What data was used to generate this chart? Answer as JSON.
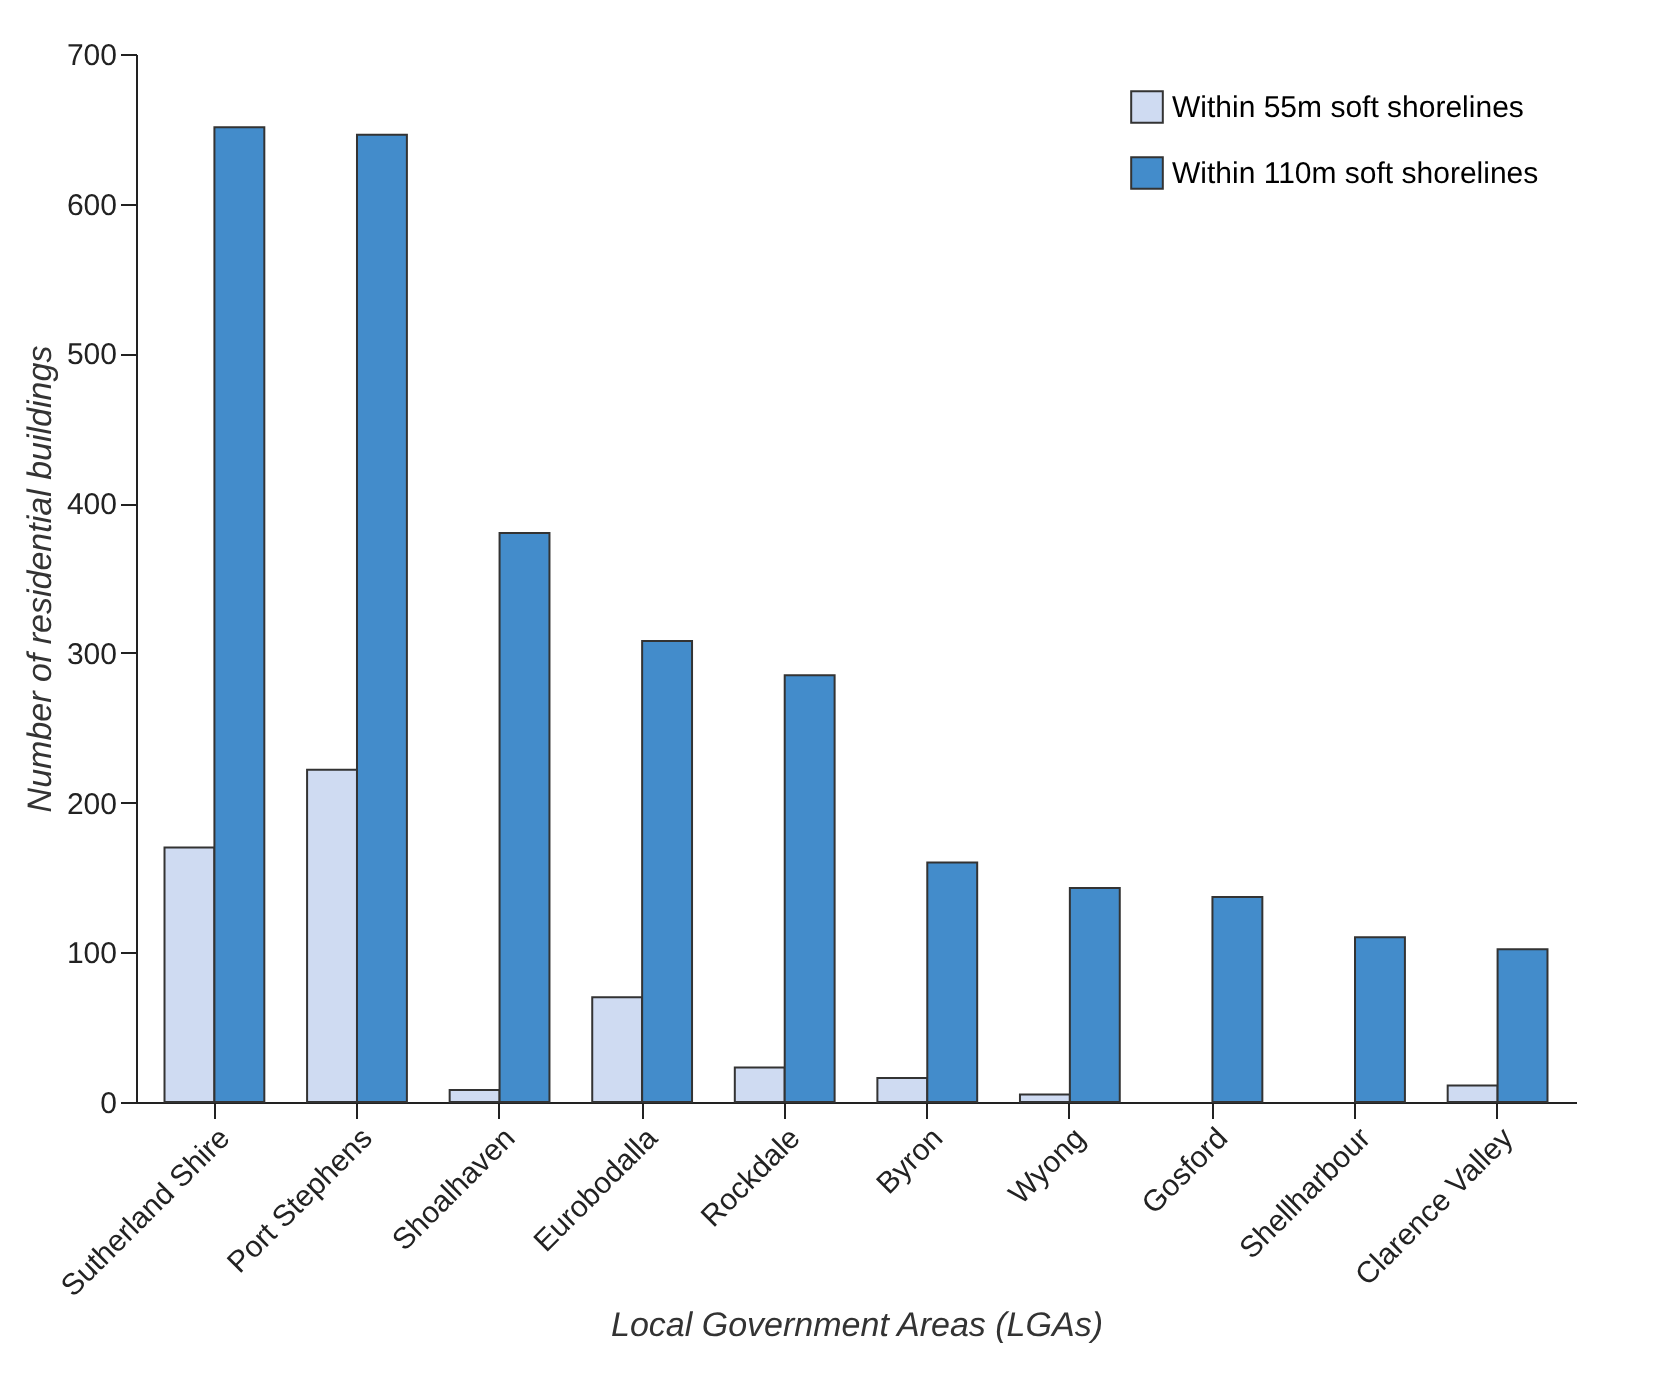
{
  "chart_data": {
    "type": "bar",
    "xlabel": "Local Government Areas (LGAs)",
    "ylabel": "Number of residential buildings",
    "categories": [
      "Sutherland Shire",
      "Port Stephens",
      "Shoalhaven",
      "Eurobodalla",
      "Rockdale",
      "Byron",
      "Wyong",
      "Gosford",
      "Shellharbour",
      "Clarence Valley"
    ],
    "series": [
      {
        "name": "Within 55m soft shorelines",
        "color": "#cfdbf2",
        "values": [
          170,
          222,
          8,
          70,
          23,
          16,
          5,
          null,
          null,
          11
        ]
      },
      {
        "name": "Within 110m soft shorelines",
        "color": "#438ccb",
        "values": [
          651,
          646,
          380,
          308,
          285,
          160,
          143,
          137,
          110,
          102
        ]
      }
    ],
    "ylim": [
      0,
      700
    ],
    "yticks": [
      0,
      100,
      200,
      300,
      400,
      500,
      600,
      700
    ],
    "grid": false,
    "legend": "top right"
  }
}
